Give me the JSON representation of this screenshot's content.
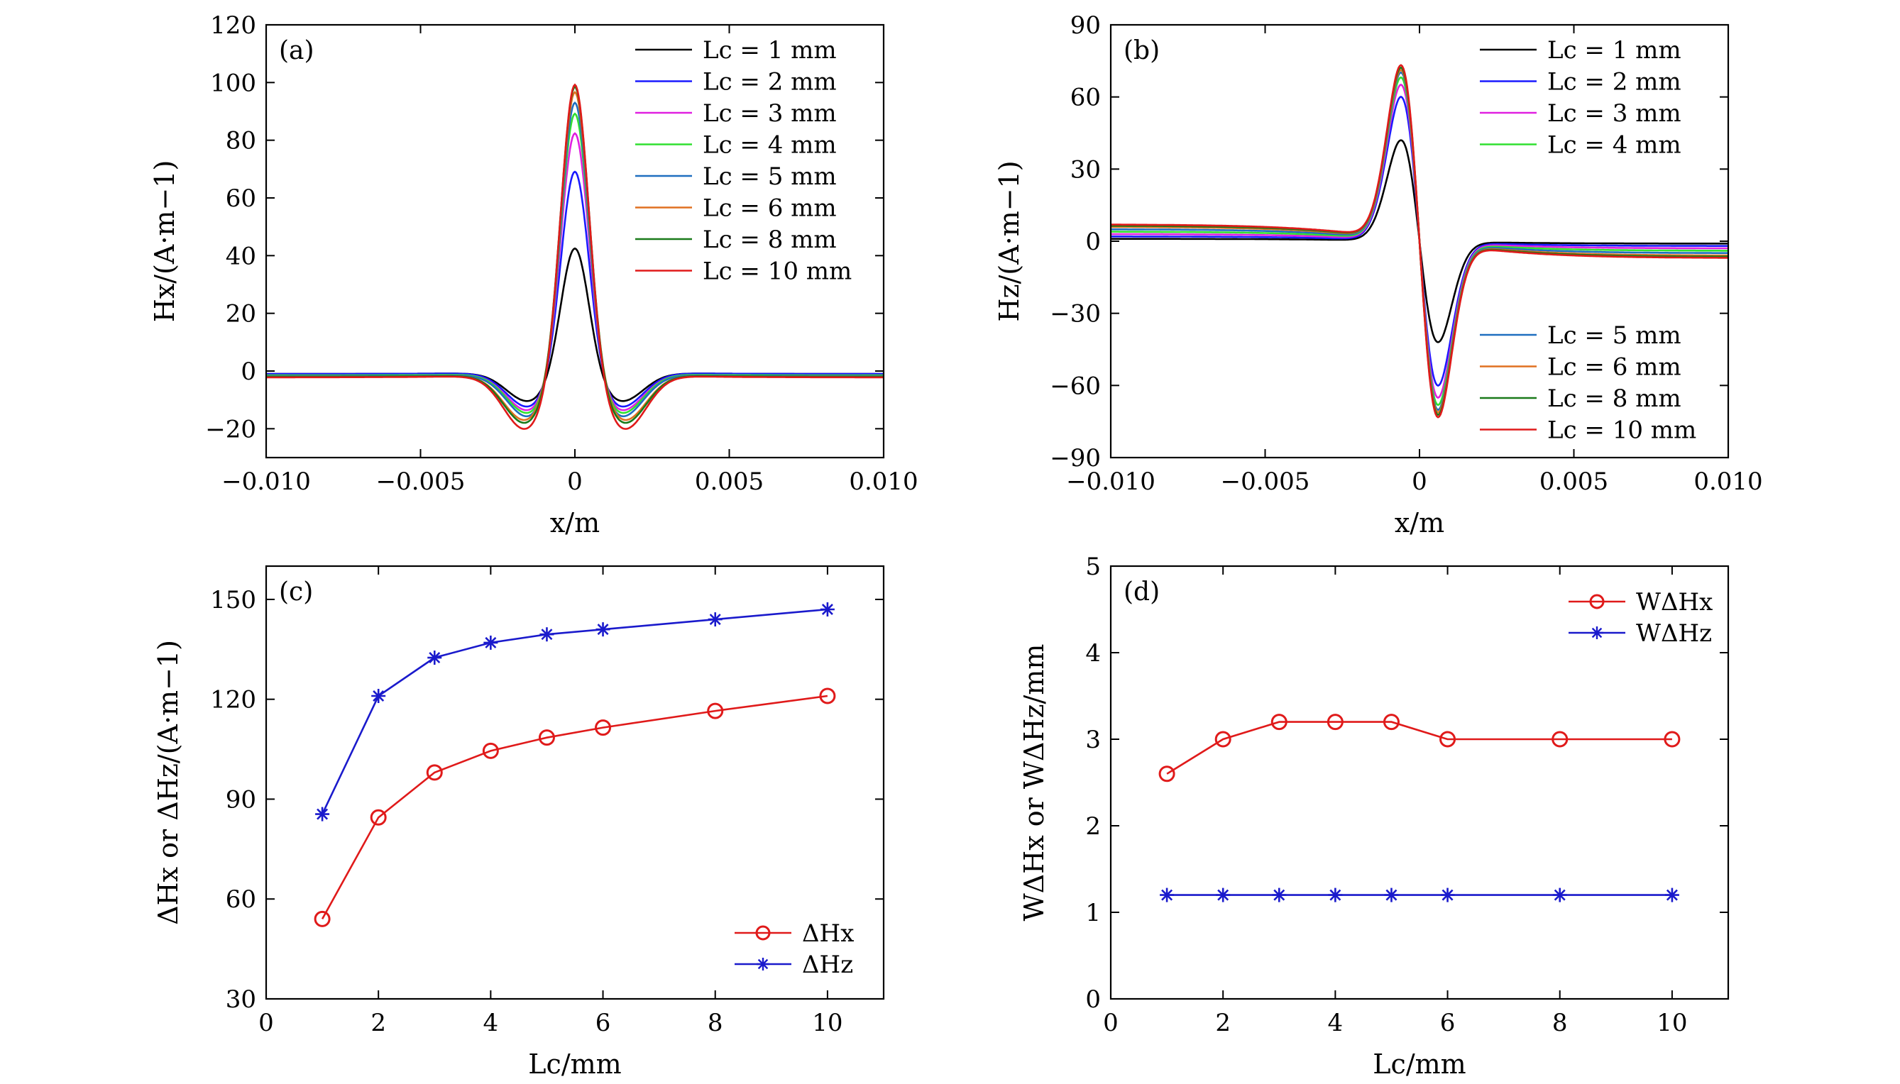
{
  "chart_data": [
    {
      "id": "a",
      "type": "line",
      "panel_label": "(a)",
      "xlabel": "x/m",
      "ylabel": "Hx/(A·m−1)",
      "xlim": [
        -0.01,
        0.01
      ],
      "ylim": [
        -30,
        120
      ],
      "xticks": [
        -0.01,
        -0.005,
        0,
        0.005,
        0.01
      ],
      "xtick_labels": [
        "−0.010",
        "−0.005",
        "0",
        "0.005",
        "0.010"
      ],
      "yticks": [
        -20,
        0,
        20,
        40,
        60,
        80,
        100,
        120
      ],
      "ytick_labels": [
        "−20",
        "0",
        "20",
        "40",
        "60",
        "80",
        "100",
        "120"
      ],
      "legend_position": "top-right",
      "series": [
        {
          "name": "Lc = 1 mm",
          "color": "#000000",
          "peak": 44.5,
          "sigma": 0.00045,
          "dip": -10,
          "dip_x": 0.0015,
          "tail": -1
        },
        {
          "name": "Lc = 2 mm",
          "color": "#1a1aff",
          "peak": 71.5,
          "sigma": 0.00045,
          "dip": -12,
          "dip_x": 0.0015,
          "tail": -1
        },
        {
          "name": "Lc = 3 mm",
          "color": "#e020e0",
          "peak": 85,
          "sigma": 0.00045,
          "dip": -13,
          "dip_x": 0.0015,
          "tail": -1.5
        },
        {
          "name": "Lc = 4 mm",
          "color": "#30e030",
          "peak": 92,
          "sigma": 0.00045,
          "dip": -14,
          "dip_x": 0.0015,
          "tail": -1.5
        },
        {
          "name": "Lc = 5 mm",
          "color": "#1f6fbf",
          "peak": 96,
          "sigma": 0.00045,
          "dip": -15,
          "dip_x": 0.0015,
          "tail": -1.8
        },
        {
          "name": "Lc = 6 mm",
          "color": "#e07020",
          "peak": 99,
          "sigma": 0.00045,
          "dip": -16,
          "dip_x": 0.0016,
          "tail": -2
        },
        {
          "name": "Lc = 8 mm",
          "color": "#1a7a1a",
          "peak": 101,
          "sigma": 0.00045,
          "dip": -17,
          "dip_x": 0.0016,
          "tail": -2
        },
        {
          "name": "Lc = 10 mm",
          "color": "#e01a1a",
          "peak": 102,
          "sigma": 0.00045,
          "dip": -19,
          "dip_x": 0.0016,
          "tail": -2.2
        }
      ]
    },
    {
      "id": "b",
      "type": "line",
      "panel_label": "(b)",
      "xlabel": "x/m",
      "ylabel": "Hz/(A·m−1)",
      "xlim": [
        -0.01,
        0.01
      ],
      "ylim": [
        -90,
        90
      ],
      "xticks": [
        -0.01,
        -0.005,
        0,
        0.005,
        0.01
      ],
      "xtick_labels": [
        "−0.010",
        "−0.005",
        "0",
        "0.005",
        "0.010"
      ],
      "yticks": [
        -90,
        -60,
        -30,
        0,
        30,
        60,
        90
      ],
      "ytick_labels": [
        "−90",
        "−60",
        "−30",
        "0",
        "30",
        "60",
        "90"
      ],
      "legend_position": "top-right and bottom-right",
      "series": [
        {
          "name": "Lc = 1 mm",
          "color": "#000000",
          "peak": 42,
          "px": 0.0006,
          "tail": 1
        },
        {
          "name": "Lc = 2 mm",
          "color": "#1a1aff",
          "peak": 60,
          "px": 0.0006,
          "tail": 2
        },
        {
          "name": "Lc = 3 mm",
          "color": "#e020e0",
          "peak": 65,
          "px": 0.0006,
          "tail": 3
        },
        {
          "name": "Lc = 4 mm",
          "color": "#30e030",
          "peak": 68,
          "px": 0.0006,
          "tail": 4
        },
        {
          "name": "Lc = 5 mm",
          "color": "#1f6fbf",
          "peak": 70,
          "px": 0.0006,
          "tail": 5
        },
        {
          "name": "Lc = 6 mm",
          "color": "#e07020",
          "peak": 71,
          "px": 0.0006,
          "tail": 6
        },
        {
          "name": "Lc = 8 mm",
          "color": "#1a7a1a",
          "peak": 72,
          "px": 0.0006,
          "tail": 6.5
        },
        {
          "name": "Lc = 10 mm",
          "color": "#e01a1a",
          "peak": 73,
          "px": 0.0006,
          "tail": 7
        }
      ]
    },
    {
      "id": "c",
      "type": "line",
      "panel_label": "(c)",
      "xlabel": "Lc/mm",
      "ylabel": "ΔHx or ΔHz/(A·m−1)",
      "xlim": [
        0,
        11
      ],
      "ylim": [
        30,
        160
      ],
      "xticks": [
        0,
        2,
        4,
        6,
        8,
        10
      ],
      "xtick_labels": [
        "0",
        "2",
        "4",
        "6",
        "8",
        "10"
      ],
      "yticks": [
        30,
        60,
        90,
        120,
        150
      ],
      "ytick_labels": [
        "30",
        "60",
        "90",
        "120",
        "150"
      ],
      "legend_position": "bottom-right",
      "x": [
        1,
        2,
        3,
        4,
        5,
        6,
        8,
        10
      ],
      "series": [
        {
          "name": "ΔHx",
          "color": "#e01a1a",
          "marker": "circle",
          "values": [
            54,
            84.5,
            98,
            104.5,
            108.5,
            111.5,
            116.5,
            121
          ]
        },
        {
          "name": "ΔHz",
          "color": "#1a1acc",
          "marker": "star",
          "values": [
            85.5,
            121,
            132.5,
            137,
            139.5,
            141,
            144,
            147
          ]
        }
      ]
    },
    {
      "id": "d",
      "type": "line",
      "panel_label": "(d)",
      "xlabel": "Lc/mm",
      "ylabel": "WΔHx or WΔHz/mm",
      "xlim": [
        0,
        11
      ],
      "ylim": [
        0,
        5
      ],
      "xticks": [
        0,
        2,
        4,
        6,
        8,
        10
      ],
      "xtick_labels": [
        "0",
        "2",
        "4",
        "6",
        "8",
        "10"
      ],
      "yticks": [
        0,
        1,
        2,
        3,
        4,
        5
      ],
      "ytick_labels": [
        "0",
        "1",
        "2",
        "3",
        "4",
        "5"
      ],
      "legend_position": "top-right",
      "x": [
        1,
        2,
        3,
        4,
        5,
        6,
        8,
        10
      ],
      "series": [
        {
          "name": "WΔHx",
          "color": "#e01a1a",
          "marker": "circle",
          "values": [
            2.6,
            3.0,
            3.2,
            3.2,
            3.2,
            3.0,
            3.0,
            3.0
          ]
        },
        {
          "name": "WΔHz",
          "color": "#1a1acc",
          "marker": "star",
          "values": [
            1.2,
            1.2,
            1.2,
            1.2,
            1.2,
            1.2,
            1.2,
            1.2
          ]
        }
      ]
    }
  ]
}
